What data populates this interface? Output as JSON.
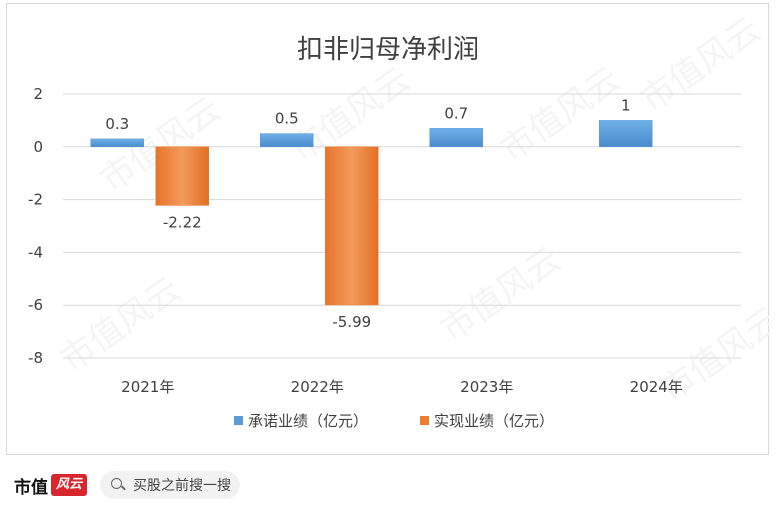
{
  "chart_data": {
    "type": "bar",
    "title": "扣非归母净利润",
    "categories": [
      "2021年",
      "2022年",
      "2023年",
      "2024年"
    ],
    "series": [
      {
        "name": "承诺业绩（亿元）",
        "values": [
          0.3,
          0.5,
          0.7,
          1
        ],
        "labels": [
          "0.3",
          "0.5",
          "0.7",
          "1"
        ],
        "color": "#5b9bd5"
      },
      {
        "name": "实现业绩（亿元）",
        "values": [
          -2.22,
          -5.99,
          null,
          null
        ],
        "labels": [
          "-2.22",
          "-5.99",
          "",
          ""
        ],
        "color": "#ed7d31"
      }
    ],
    "yticks": [
      "2",
      "0",
      "-2",
      "-4",
      "-6",
      "-8"
    ],
    "ylim": [
      -8,
      2
    ],
    "grid": true,
    "legend_position": "bottom",
    "watermark": "市值风云"
  },
  "footer": {
    "brand_name": "市值",
    "brand_logo_text": "风云",
    "search_placeholder": "买股之前搜一搜"
  }
}
